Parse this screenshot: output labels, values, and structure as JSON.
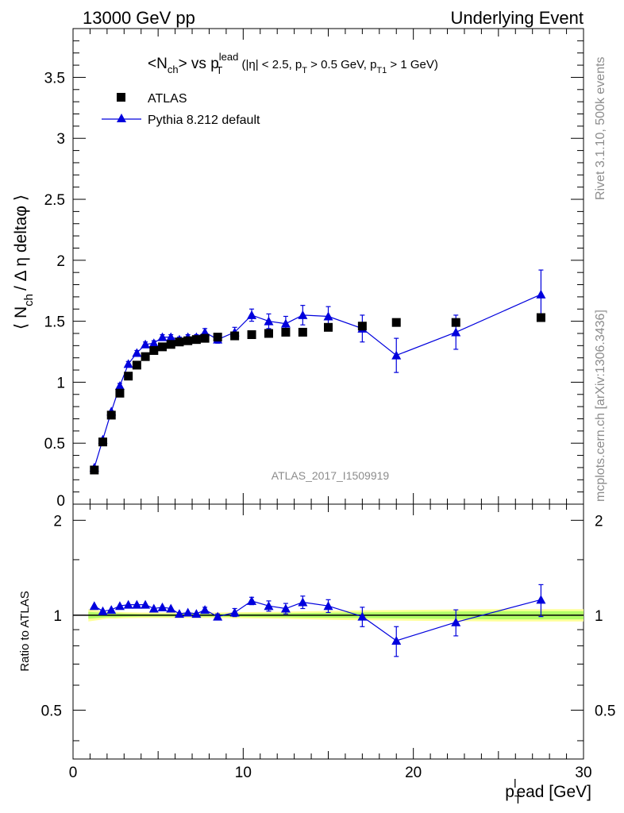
{
  "header": {
    "left": "13000 GeV pp",
    "right": "Underlying Event"
  },
  "side_labels": {
    "rivet": "Rivet 3.1.10,  500k events",
    "mcplots": "mcplots.cern.ch [arXiv:1306.3436]"
  },
  "watermark": "ATLAS_2017_I1509919",
  "chart_data": [
    {
      "type": "scatter",
      "title_parts": {
        "lhs": "<N",
        "lhs_sub": "ch",
        "mid": "> vs p",
        "mid_sup": "lead",
        "mid_sub": "T",
        "cut1": " (|η| < 2.5, p",
        "cut1_sub": "T",
        "cut2": " > 0.5 GeV, p",
        "cut2_sub": "T1",
        "cut3": " > 1 GeV)"
      },
      "ylabel_parts": {
        "a": "⟨ N",
        "sub": "ch",
        "b": "/ Δ η deltaφ ⟩"
      },
      "ylim": [
        0,
        3.9
      ],
      "xlim": [
        0,
        30
      ],
      "yticks": [
        "0.5",
        "1",
        "1.5",
        "2",
        "2.5",
        "3",
        "3.5"
      ],
      "ytick_values": [
        0.5,
        1,
        1.5,
        2,
        2.5,
        3,
        3.5
      ],
      "ytick_zero": "0",
      "legend": {
        "placement": "top-left",
        "data_label": "ATLAS",
        "mc_label": "Pythia 8.212 default"
      },
      "series": [
        {
          "name": "ATLAS",
          "marker": "square",
          "color": "#000000",
          "x": [
            1.25,
            1.75,
            2.25,
            2.75,
            3.25,
            3.75,
            4.25,
            4.75,
            5.25,
            5.75,
            6.25,
            6.75,
            7.25,
            7.75,
            8.5,
            9.5,
            10.5,
            11.5,
            12.5,
            13.5,
            15,
            17,
            19,
            22.5,
            27.5
          ],
          "y": [
            0.28,
            0.51,
            0.73,
            0.91,
            1.05,
            1.14,
            1.21,
            1.26,
            1.29,
            1.31,
            1.33,
            1.34,
            1.35,
            1.36,
            1.37,
            1.38,
            1.39,
            1.4,
            1.41,
            1.41,
            1.45,
            1.46,
            1.49,
            1.49,
            1.53
          ]
        },
        {
          "name": "Pythia 8.212 default",
          "marker": "triangle",
          "color": "#0000dd",
          "x": [
            1.25,
            1.75,
            2.25,
            2.75,
            3.25,
            3.75,
            4.25,
            4.75,
            5.25,
            5.75,
            6.25,
            6.75,
            7.25,
            7.75,
            8.5,
            9.5,
            10.5,
            11.5,
            12.5,
            13.5,
            15,
            17,
            19,
            22.5,
            27.5
          ],
          "y": [
            0.3,
            0.53,
            0.76,
            0.97,
            1.15,
            1.24,
            1.31,
            1.32,
            1.37,
            1.37,
            1.35,
            1.37,
            1.37,
            1.41,
            1.35,
            1.41,
            1.55,
            1.5,
            1.48,
            1.55,
            1.54,
            1.44,
            1.22,
            1.41,
            1.72
          ],
          "err": [
            0.01,
            0.01,
            0.01,
            0.02,
            0.02,
            0.02,
            0.02,
            0.02,
            0.02,
            0.02,
            0.02,
            0.02,
            0.02,
            0.03,
            0.03,
            0.04,
            0.05,
            0.06,
            0.06,
            0.08,
            0.08,
            0.11,
            0.14,
            0.14,
            0.2
          ]
        }
      ]
    },
    {
      "type": "scatter",
      "title": "",
      "ylabel": "Ratio to ATLAS",
      "xlabel_parts": {
        "a": "p",
        "sub": "T",
        "sup": "l",
        "b": "ead [GeV]"
      },
      "ylim": [
        0.35,
        2.25
      ],
      "xlim": [
        0,
        30
      ],
      "yticks": [
        "0.5",
        "1",
        "2"
      ],
      "ytick_values": [
        0.5,
        1,
        2
      ],
      "xticks": [
        "0",
        "10",
        "20",
        "30"
      ],
      "xtick_values": [
        0,
        10,
        20,
        30
      ],
      "reference_line": 1,
      "band": {
        "x": [
          0.9,
          1.5,
          2.0,
          2.5,
          3.0,
          4.0,
          6.0,
          8.0,
          12.0,
          16.0,
          20.0,
          25.0,
          30.0
        ],
        "inner_lo": [
          0.975,
          0.98,
          0.985,
          0.985,
          0.988,
          0.99,
          0.99,
          0.99,
          0.985,
          0.98,
          0.975,
          0.97,
          0.97
        ],
        "inner_hi": [
          1.025,
          1.02,
          1.015,
          1.015,
          1.012,
          1.01,
          1.01,
          1.01,
          1.015,
          1.02,
          1.025,
          1.03,
          1.03
        ],
        "outer_lo": [
          0.955,
          0.965,
          0.975,
          0.975,
          0.978,
          0.98,
          0.98,
          0.98,
          0.975,
          0.965,
          0.96,
          0.955,
          0.955
        ],
        "outer_hi": [
          1.045,
          1.035,
          1.025,
          1.025,
          1.022,
          1.02,
          1.02,
          1.02,
          1.025,
          1.035,
          1.04,
          1.045,
          1.045
        ],
        "inner_color": "#b2ff66",
        "outer_color": "#ffff99"
      },
      "series": [
        {
          "name": "Pythia 8.212 default / ATLAS",
          "marker": "triangle",
          "color": "#0000dd",
          "x": [
            1.25,
            1.75,
            2.25,
            2.75,
            3.25,
            3.75,
            4.25,
            4.75,
            5.25,
            5.75,
            6.25,
            6.75,
            7.25,
            7.75,
            8.5,
            9.5,
            10.5,
            11.5,
            12.5,
            13.5,
            15,
            17,
            19,
            22.5,
            27.5
          ],
          "y": [
            1.07,
            1.03,
            1.04,
            1.07,
            1.08,
            1.08,
            1.08,
            1.05,
            1.06,
            1.05,
            1.01,
            1.02,
            1.01,
            1.04,
            0.99,
            1.02,
            1.11,
            1.07,
            1.05,
            1.1,
            1.07,
            0.99,
            0.83,
            0.95,
            1.12
          ],
          "err": [
            0.01,
            0.01,
            0.01,
            0.01,
            0.01,
            0.01,
            0.01,
            0.01,
            0.01,
            0.01,
            0.01,
            0.01,
            0.01,
            0.02,
            0.02,
            0.03,
            0.03,
            0.04,
            0.04,
            0.05,
            0.05,
            0.07,
            0.09,
            0.09,
            0.13
          ]
        }
      ]
    }
  ]
}
